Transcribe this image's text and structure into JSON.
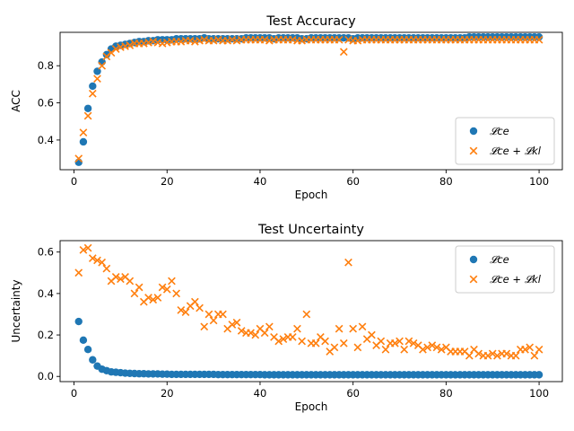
{
  "colors": {
    "ce": "#1f77b4",
    "cekl": "#ff7f0e"
  },
  "chart_data": [
    {
      "type": "scatter",
      "title": "Test Accuracy",
      "xlabel": "Epoch",
      "ylabel": "ACC",
      "xlim": [
        -3,
        105
      ],
      "ylim": [
        0.24,
        0.98
      ],
      "xticks": [
        0,
        20,
        40,
        60,
        80,
        100
      ],
      "yticks": [
        0.4,
        0.6,
        0.8
      ],
      "grid": false,
      "legend": "bottom-right",
      "series": [
        {
          "name": "𝓛ce",
          "marker": "circle",
          "color": "#1f77b4",
          "x": [
            1,
            2,
            3,
            4,
            5,
            6,
            7,
            8,
            9,
            10,
            11,
            12,
            13,
            14,
            15,
            16,
            17,
            18,
            19,
            20,
            21,
            22,
            23,
            24,
            25,
            26,
            27,
            28,
            29,
            30,
            31,
            32,
            33,
            34,
            35,
            36,
            37,
            38,
            39,
            40,
            41,
            42,
            43,
            44,
            45,
            46,
            47,
            48,
            49,
            50,
            51,
            52,
            53,
            54,
            55,
            56,
            57,
            58,
            59,
            60,
            61,
            62,
            63,
            64,
            65,
            66,
            67,
            68,
            69,
            70,
            71,
            72,
            73,
            74,
            75,
            76,
            77,
            78,
            79,
            80,
            81,
            82,
            83,
            84,
            85,
            86,
            87,
            88,
            89,
            90,
            91,
            92,
            93,
            94,
            95,
            96,
            97,
            98,
            99,
            100
          ],
          "y": [
            0.28,
            0.39,
            0.57,
            0.69,
            0.77,
            0.82,
            0.86,
            0.89,
            0.905,
            0.91,
            0.915,
            0.92,
            0.925,
            0.93,
            0.93,
            0.935,
            0.935,
            0.94,
            0.94,
            0.94,
            0.94,
            0.945,
            0.945,
            0.945,
            0.945,
            0.945,
            0.945,
            0.95,
            0.945,
            0.945,
            0.945,
            0.945,
            0.945,
            0.945,
            0.945,
            0.945,
            0.95,
            0.95,
            0.95,
            0.95,
            0.95,
            0.95,
            0.945,
            0.95,
            0.95,
            0.95,
            0.95,
            0.95,
            0.945,
            0.945,
            0.95,
            0.95,
            0.95,
            0.95,
            0.95,
            0.95,
            0.95,
            0.95,
            0.95,
            0.945,
            0.95,
            0.95,
            0.95,
            0.95,
            0.95,
            0.95,
            0.95,
            0.95,
            0.95,
            0.95,
            0.95,
            0.95,
            0.95,
            0.95,
            0.95,
            0.95,
            0.95,
            0.95,
            0.95,
            0.95,
            0.95,
            0.95,
            0.95,
            0.95,
            0.955,
            0.955,
            0.955,
            0.955,
            0.955,
            0.955,
            0.955,
            0.955,
            0.955,
            0.955,
            0.955,
            0.955,
            0.955,
            0.955,
            0.955,
            0.955
          ]
        },
        {
          "name": "𝓛ce + 𝓛kl",
          "marker": "x",
          "color": "#ff7f0e",
          "x": [
            1,
            2,
            3,
            4,
            5,
            6,
            7,
            8,
            9,
            10,
            11,
            12,
            13,
            14,
            15,
            16,
            17,
            18,
            19,
            20,
            21,
            22,
            23,
            24,
            25,
            26,
            27,
            28,
            29,
            30,
            31,
            32,
            33,
            34,
            35,
            36,
            37,
            38,
            39,
            40,
            41,
            42,
            43,
            44,
            45,
            46,
            47,
            48,
            49,
            50,
            51,
            52,
            53,
            54,
            55,
            56,
            57,
            58,
            59,
            60,
            61,
            62,
            63,
            64,
            65,
            66,
            67,
            68,
            69,
            70,
            71,
            72,
            73,
            74,
            75,
            76,
            77,
            78,
            79,
            80,
            81,
            82,
            83,
            84,
            85,
            86,
            87,
            88,
            89,
            90,
            91,
            92,
            93,
            94,
            95,
            96,
            97,
            98,
            99,
            100
          ],
          "y": [
            0.3,
            0.44,
            0.53,
            0.65,
            0.73,
            0.8,
            0.85,
            0.87,
            0.89,
            0.9,
            0.905,
            0.91,
            0.92,
            0.92,
            0.92,
            0.925,
            0.93,
            0.925,
            0.92,
            0.925,
            0.93,
            0.93,
            0.93,
            0.935,
            0.935,
            0.93,
            0.935,
            0.94,
            0.935,
            0.935,
            0.94,
            0.935,
            0.935,
            0.94,
            0.935,
            0.94,
            0.94,
            0.94,
            0.94,
            0.94,
            0.94,
            0.935,
            0.94,
            0.94,
            0.94,
            0.94,
            0.94,
            0.935,
            0.935,
            0.94,
            0.94,
            0.94,
            0.94,
            0.94,
            0.94,
            0.94,
            0.94,
            0.875,
            0.94,
            0.935,
            0.935,
            0.94,
            0.94,
            0.94,
            0.94,
            0.94,
            0.94,
            0.94,
            0.94,
            0.94,
            0.94,
            0.94,
            0.94,
            0.94,
            0.94,
            0.94,
            0.94,
            0.94,
            0.94,
            0.94,
            0.94,
            0.94,
            0.94,
            0.94,
            0.94,
            0.94,
            0.94,
            0.94,
            0.94,
            0.94,
            0.94,
            0.94,
            0.94,
            0.94,
            0.94,
            0.94,
            0.94,
            0.94,
            0.94,
            0.94
          ]
        }
      ]
    },
    {
      "type": "scatter",
      "title": "Test Uncertainty",
      "xlabel": "Epoch",
      "ylabel": "Uncertainty",
      "xlim": [
        -3,
        105
      ],
      "ylim": [
        -0.025,
        0.655
      ],
      "xticks": [
        0,
        20,
        40,
        60,
        80,
        100
      ],
      "yticks": [
        0.0,
        0.2,
        0.4,
        0.6
      ],
      "ytick_labels": [
        "0.0",
        "0.2",
        "0.4",
        "0.6"
      ],
      "grid": false,
      "legend": "top-right",
      "series": [
        {
          "name": "𝓛ce",
          "marker": "circle",
          "color": "#1f77b4",
          "x": [
            1,
            2,
            3,
            4,
            5,
            6,
            7,
            8,
            9,
            10,
            11,
            12,
            13,
            14,
            15,
            16,
            17,
            18,
            19,
            20,
            21,
            22,
            23,
            24,
            25,
            26,
            27,
            28,
            29,
            30,
            31,
            32,
            33,
            34,
            35,
            36,
            37,
            38,
            39,
            40,
            41,
            42,
            43,
            44,
            45,
            46,
            47,
            48,
            49,
            50,
            51,
            52,
            53,
            54,
            55,
            56,
            57,
            58,
            59,
            60,
            61,
            62,
            63,
            64,
            65,
            66,
            67,
            68,
            69,
            70,
            71,
            72,
            73,
            74,
            75,
            76,
            77,
            78,
            79,
            80,
            81,
            82,
            83,
            84,
            85,
            86,
            87,
            88,
            89,
            90,
            91,
            92,
            93,
            94,
            95,
            96,
            97,
            98,
            99,
            100
          ],
          "y": [
            0.265,
            0.175,
            0.13,
            0.08,
            0.05,
            0.035,
            0.028,
            0.022,
            0.02,
            0.018,
            0.016,
            0.015,
            0.014,
            0.013,
            0.013,
            0.012,
            0.012,
            0.012,
            0.011,
            0.011,
            0.01,
            0.01,
            0.01,
            0.01,
            0.01,
            0.01,
            0.01,
            0.01,
            0.01,
            0.01,
            0.009,
            0.009,
            0.009,
            0.009,
            0.009,
            0.009,
            0.009,
            0.009,
            0.009,
            0.009,
            0.008,
            0.008,
            0.008,
            0.008,
            0.008,
            0.008,
            0.008,
            0.008,
            0.008,
            0.008,
            0.008,
            0.008,
            0.008,
            0.008,
            0.008,
            0.008,
            0.008,
            0.008,
            0.008,
            0.008,
            0.008,
            0.008,
            0.008,
            0.008,
            0.008,
            0.008,
            0.008,
            0.008,
            0.008,
            0.008,
            0.008,
            0.008,
            0.008,
            0.008,
            0.008,
            0.008,
            0.008,
            0.008,
            0.008,
            0.008,
            0.008,
            0.008,
            0.008,
            0.008,
            0.008,
            0.008,
            0.008,
            0.008,
            0.008,
            0.008,
            0.008,
            0.008,
            0.008,
            0.008,
            0.008,
            0.008,
            0.008,
            0.008,
            0.008,
            0.008
          ]
        },
        {
          "name": "𝓛ce + 𝓛kl",
          "marker": "x",
          "color": "#ff7f0e",
          "x": [
            1,
            2,
            3,
            4,
            5,
            6,
            7,
            8,
            9,
            10,
            11,
            12,
            13,
            14,
            15,
            16,
            17,
            18,
            19,
            20,
            21,
            22,
            23,
            24,
            25,
            26,
            27,
            28,
            29,
            30,
            31,
            32,
            33,
            34,
            35,
            36,
            37,
            38,
            39,
            40,
            41,
            42,
            43,
            44,
            45,
            46,
            47,
            48,
            49,
            50,
            51,
            52,
            53,
            54,
            55,
            56,
            57,
            58,
            59,
            60,
            61,
            62,
            63,
            64,
            65,
            66,
            67,
            68,
            69,
            70,
            71,
            72,
            73,
            74,
            75,
            76,
            77,
            78,
            79,
            80,
            81,
            82,
            83,
            84,
            85,
            86,
            87,
            88,
            89,
            90,
            91,
            92,
            93,
            94,
            95,
            96,
            97,
            98,
            99,
            100
          ],
          "y": [
            0.5,
            0.61,
            0.62,
            0.57,
            0.56,
            0.55,
            0.52,
            0.46,
            0.48,
            0.47,
            0.48,
            0.46,
            0.4,
            0.43,
            0.36,
            0.38,
            0.37,
            0.38,
            0.43,
            0.42,
            0.46,
            0.4,
            0.32,
            0.31,
            0.34,
            0.36,
            0.33,
            0.24,
            0.3,
            0.27,
            0.3,
            0.3,
            0.23,
            0.25,
            0.26,
            0.22,
            0.21,
            0.21,
            0.2,
            0.23,
            0.21,
            0.24,
            0.19,
            0.17,
            0.18,
            0.19,
            0.19,
            0.23,
            0.17,
            0.3,
            0.16,
            0.16,
            0.19,
            0.17,
            0.12,
            0.14,
            0.23,
            0.16,
            0.55,
            0.23,
            0.14,
            0.24,
            0.18,
            0.2,
            0.15,
            0.17,
            0.13,
            0.16,
            0.16,
            0.17,
            0.13,
            0.17,
            0.16,
            0.15,
            0.13,
            0.14,
            0.15,
            0.14,
            0.13,
            0.14,
            0.12,
            0.12,
            0.12,
            0.12,
            0.1,
            0.13,
            0.11,
            0.1,
            0.1,
            0.11,
            0.1,
            0.11,
            0.11,
            0.1,
            0.1,
            0.13,
            0.13,
            0.14,
            0.1,
            0.13
          ]
        }
      ]
    }
  ]
}
